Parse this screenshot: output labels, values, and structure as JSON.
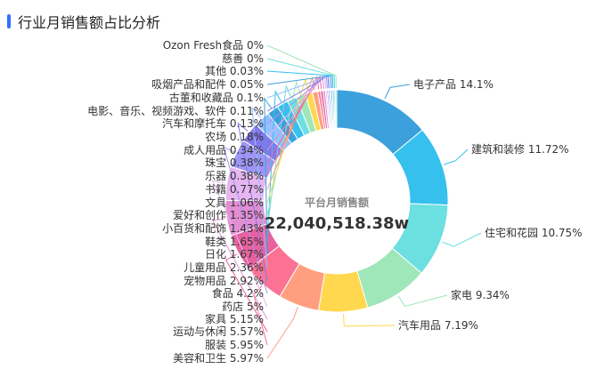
{
  "header": {
    "title": "行业月销售额占比分析"
  },
  "center": {
    "label": "平台月销售额",
    "value": "22,040,518.38w"
  },
  "chart_data": {
    "type": "pie",
    "variant": "donut",
    "slices": [
      {
        "name": "电子产品",
        "value": 14.1,
        "label": "14.1%",
        "color": "#3ba0dc"
      },
      {
        "name": "建筑和装修",
        "value": 11.72,
        "label": "11.72%",
        "color": "#35c0ee"
      },
      {
        "name": "住宅和花园",
        "value": 10.75,
        "label": "10.75%",
        "color": "#6cdfe0"
      },
      {
        "name": "家电",
        "value": 9.34,
        "label": "9.34%",
        "color": "#9fe6b8"
      },
      {
        "name": "汽车用品",
        "value": 7.19,
        "label": "7.19%",
        "color": "#ffd84f"
      },
      {
        "name": "美容和卫生",
        "value": 5.97,
        "label": "5.97%",
        "color": "#ff9f7f"
      },
      {
        "name": "服装",
        "value": 5.95,
        "label": "5.95%",
        "color": "#fb7293"
      },
      {
        "name": "运动与休闲",
        "value": 5.57,
        "label": "5.57%",
        "color": "#e7619f"
      },
      {
        "name": "家具",
        "value": 5.15,
        "label": "5.15%",
        "color": "#e28ed3"
      },
      {
        "name": "药店",
        "value": 5,
        "label": "5%",
        "color": "#e5b6f0"
      },
      {
        "name": "食品",
        "value": 4.2,
        "label": "4.2%",
        "color": "#9d96f5"
      },
      {
        "name": "宠物用品",
        "value": 2.92,
        "label": "2.92%",
        "color": "#8378ea"
      },
      {
        "name": "儿童用品",
        "value": 2.36,
        "label": "2.36%",
        "color": "#96bfff"
      },
      {
        "name": "日化",
        "value": 1.67,
        "label": "1.67%",
        "color": "#3ba0dc"
      },
      {
        "name": "鞋类",
        "value": 1.65,
        "label": "1.65%",
        "color": "#35c0ee"
      },
      {
        "name": "小百货和配饰",
        "value": 1.43,
        "label": "1.43%",
        "color": "#6cdfe0"
      },
      {
        "name": "爱好和创作",
        "value": 1.35,
        "label": "1.35%",
        "color": "#9fe6b8"
      },
      {
        "name": "文具",
        "value": 1.06,
        "label": "1.06%",
        "color": "#ffd84f"
      },
      {
        "name": "书籍",
        "value": 0.77,
        "label": "0.77%",
        "color": "#ff9f7f"
      },
      {
        "name": "乐器",
        "value": 0.38,
        "label": "0.38%",
        "color": "#fb7293"
      },
      {
        "name": "珠宝",
        "value": 0.38,
        "label": "0.38%",
        "color": "#e7619f"
      },
      {
        "name": "成人用品",
        "value": 0.34,
        "label": "0.34%",
        "color": "#e28ed3"
      },
      {
        "name": "农场",
        "value": 0.18,
        "label": "0.18%",
        "color": "#e5b6f0"
      },
      {
        "name": "汽车和摩托车",
        "value": 0.13,
        "label": "0.13%",
        "color": "#9d96f5"
      },
      {
        "name": "电影、音乐、视频游戏、软件",
        "value": 0.11,
        "label": "0.11%",
        "color": "#8378ea"
      },
      {
        "name": "古董和收藏品",
        "value": 0.1,
        "label": "0.1%",
        "color": "#96bfff"
      },
      {
        "name": "吸烟产品和配件",
        "value": 0.05,
        "label": "0.05%",
        "color": "#3ba0dc"
      },
      {
        "name": "其他",
        "value": 0.03,
        "label": "0.03%",
        "color": "#35c0ee"
      },
      {
        "name": "慈善",
        "value": 0,
        "label": "0%",
        "color": "#6cdfe0"
      },
      {
        "name": "Ozon Fresh食品",
        "value": 0,
        "label": "0%",
        "color": "#9fe6b8"
      }
    ]
  }
}
